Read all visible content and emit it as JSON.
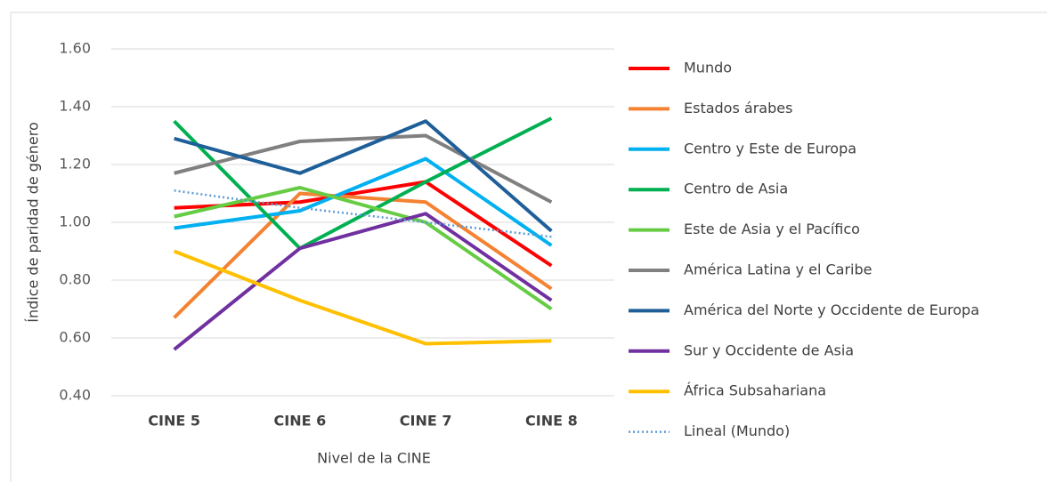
{
  "chart_data": {
    "type": "line",
    "x_label": "Nivel de  la CINE",
    "y_label": "Índice de paridad de género",
    "categories": [
      "CINE 5",
      "CINE 6",
      "CINE 7",
      "CINE 8"
    ],
    "ylim": [
      0.4,
      1.6
    ],
    "yticks": [
      {
        "value": 0.4,
        "label": "0.40"
      },
      {
        "value": 0.6,
        "label": "0.60"
      },
      {
        "value": 0.8,
        "label": "0.80"
      },
      {
        "value": 1.0,
        "label": "1.00"
      },
      {
        "value": 1.2,
        "label": "1.20"
      },
      {
        "value": 1.4,
        "label": "1.40"
      },
      {
        "value": 1.6,
        "label": "1.60"
      }
    ],
    "grid": true,
    "legend": "right",
    "series": [
      {
        "name": "Mundo",
        "color": "#ff0000",
        "values": [
          1.05,
          1.07,
          1.14,
          0.85
        ]
      },
      {
        "name": "Estados árabes",
        "color": "#f58232",
        "values": [
          0.67,
          1.1,
          1.07,
          0.77
        ]
      },
      {
        "name": "Centro y Este de Europa",
        "color": "#00b0f0",
        "values": [
          0.98,
          1.04,
          1.22,
          0.92
        ]
      },
      {
        "name": "Centro de Asia",
        "color": "#00b050",
        "values": [
          1.35,
          0.91,
          1.14,
          1.36
        ]
      },
      {
        "name": "Este de Asia y el Pacífico",
        "color": "#66cc44",
        "values": [
          1.02,
          1.12,
          1.0,
          0.7
        ]
      },
      {
        "name": "América Latina y el Caribe",
        "color": "#808080",
        "values": [
          1.17,
          1.28,
          1.3,
          1.07
        ]
      },
      {
        "name": "América del Norte y Occidente de Europa",
        "color": "#1f5f99",
        "values": [
          1.29,
          1.17,
          1.35,
          0.97
        ]
      },
      {
        "name": "Sur y Occidente de Asia",
        "color": "#7030a0",
        "values": [
          0.56,
          0.91,
          1.03,
          0.73
        ]
      },
      {
        "name": "África Subsahariana",
        "color": "#ffc000",
        "values": [
          0.9,
          0.73,
          0.58,
          0.59
        ]
      },
      {
        "name": "Lineal (Mundo)",
        "color": "#5b9bd5",
        "style": "dotted",
        "values": [
          1.11,
          1.05,
          1.0,
          0.95
        ]
      }
    ]
  }
}
